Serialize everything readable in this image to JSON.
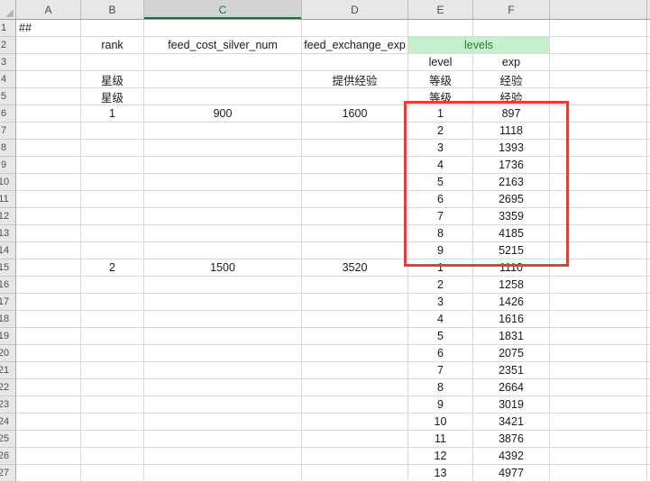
{
  "sheet": {
    "title": "spreadsheet-grid",
    "colors": {
      "selected_header_green": "#1E7145",
      "selected_header_bg": "#D2D2D2",
      "levels_bg": "#C6EFCE",
      "levels_text": "#2F7D31",
      "red_box": "#EE3B32",
      "gridline": "#D9D9D9",
      "header_bg": "#E7E7E7"
    },
    "col_headers": [
      {
        "label": "A",
        "selected": false
      },
      {
        "label": "B",
        "selected": false
      },
      {
        "label": "C",
        "selected": true
      },
      {
        "label": "D",
        "selected": false
      },
      {
        "label": "E",
        "selected": false
      },
      {
        "label": "F",
        "selected": false
      }
    ],
    "rows": [
      {
        "n": "1",
        "cells": {
          "A": "##"
        }
      },
      {
        "n": "2",
        "cells": {
          "B": "rank",
          "C": "feed_cost_silver_num",
          "D": "feed_exchange_exp"
        },
        "merged_ef": "levels"
      },
      {
        "n": "3",
        "cells": {
          "E": "level",
          "F": "exp"
        }
      },
      {
        "n": "4",
        "cells": {
          "B": "星级",
          "D": "提供经验",
          "E": "等级",
          "F": "经验"
        }
      },
      {
        "n": "5",
        "cells": {
          "B": "星级",
          "E": "等级",
          "F": "经验"
        }
      },
      {
        "n": "6",
        "cells": {
          "B": "1",
          "C": "900",
          "D": "1600",
          "E": "1",
          "F": "897"
        }
      },
      {
        "n": "7",
        "cells": {
          "E": "2",
          "F": "1118"
        }
      },
      {
        "n": "8",
        "cells": {
          "E": "3",
          "F": "1393"
        }
      },
      {
        "n": "9",
        "cells": {
          "E": "4",
          "F": "1736"
        }
      },
      {
        "n": "10",
        "cells": {
          "E": "5",
          "F": "2163"
        }
      },
      {
        "n": "11",
        "cells": {
          "E": "6",
          "F": "2695"
        }
      },
      {
        "n": "12",
        "cells": {
          "E": "7",
          "F": "3359"
        }
      },
      {
        "n": "13",
        "cells": {
          "E": "8",
          "F": "4185"
        }
      },
      {
        "n": "14",
        "cells": {
          "E": "9",
          "F": "5215"
        }
      },
      {
        "n": "15",
        "cells": {
          "B": "2",
          "C": "1500",
          "D": "3520",
          "E": "1",
          "F": "1110"
        }
      },
      {
        "n": "16",
        "cells": {
          "E": "2",
          "F": "1258"
        }
      },
      {
        "n": "17",
        "cells": {
          "E": "3",
          "F": "1426"
        }
      },
      {
        "n": "18",
        "cells": {
          "E": "4",
          "F": "1616"
        }
      },
      {
        "n": "19",
        "cells": {
          "E": "5",
          "F": "1831"
        }
      },
      {
        "n": "20",
        "cells": {
          "E": "6",
          "F": "2075"
        }
      },
      {
        "n": "21",
        "cells": {
          "E": "7",
          "F": "2351"
        }
      },
      {
        "n": "22",
        "cells": {
          "E": "8",
          "F": "2664"
        }
      },
      {
        "n": "23",
        "cells": {
          "E": "9",
          "F": "3019"
        }
      },
      {
        "n": "24",
        "cells": {
          "E": "10",
          "F": "3421"
        }
      },
      {
        "n": "25",
        "cells": {
          "E": "11",
          "F": "3876"
        }
      },
      {
        "n": "26",
        "cells": {
          "E": "12",
          "F": "4392"
        }
      },
      {
        "n": "27",
        "cells": {
          "E": "13",
          "F": "4977"
        }
      }
    ],
    "annotations": {
      "red_box": {
        "around": "levels table rank 1, rows 6-14"
      }
    }
  }
}
